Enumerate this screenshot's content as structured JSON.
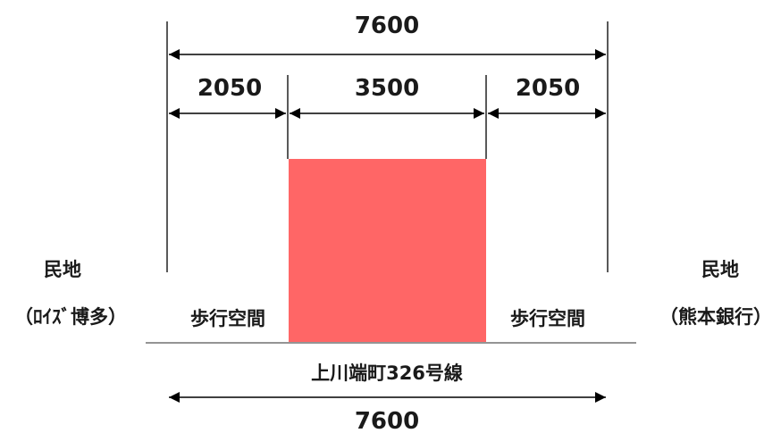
{
  "dimensions": {
    "total_top": "7600",
    "left_section": "2050",
    "center_section": "3500",
    "right_section": "2050",
    "total_bottom": "7600"
  },
  "labels": {
    "left_property": "民地",
    "left_owner": "（ﾛｲｽﾞ博多）",
    "right_property": "民地",
    "right_owner": "（熊本銀行）",
    "left_walkway": "歩行空間",
    "right_walkway": "歩行空間",
    "road_name": "上川端町326号線"
  },
  "colors": {
    "center_block": "#ff6666",
    "line": "#000000",
    "ground": "#555555"
  }
}
